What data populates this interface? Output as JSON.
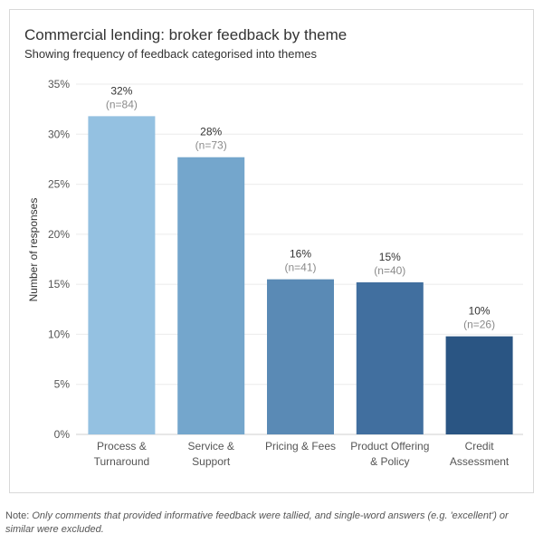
{
  "header": {
    "title": "Commercial lending: broker feedback by theme",
    "subtitle": "Showing frequency of feedback categorised into themes"
  },
  "note": {
    "lead": "Note:",
    "text": "Only comments that provided informative feedback were tallied, and single-word answers (e.g. 'excellent') or similar were excluded."
  },
  "chart_data": {
    "type": "bar",
    "title": "Commercial lending: broker feedback by theme",
    "subtitle": "Showing frequency of feedback categorised into themes",
    "xlabel": "",
    "ylabel": "Number of responses",
    "ylim": [
      0,
      35
    ],
    "yticks": [
      0,
      5,
      10,
      15,
      20,
      25,
      30,
      35
    ],
    "ytick_labels": [
      "0%",
      "5%",
      "10%",
      "15%",
      "20%",
      "25%",
      "30%",
      "35%"
    ],
    "grid": true,
    "categories": [
      [
        "Process &",
        "Turnaround"
      ],
      [
        "Service &",
        "Support"
      ],
      [
        "Pricing & Fees"
      ],
      [
        "Product Offering",
        "& Policy"
      ],
      [
        "Credit",
        "Assessment"
      ]
    ],
    "values": [
      31.8,
      27.7,
      15.5,
      15.2,
      9.8
    ],
    "value_labels": [
      "32%",
      "28%",
      "16%",
      "15%",
      "10%"
    ],
    "count_labels": [
      "(n=84)",
      "(n=73)",
      "(n=41)",
      "(n=40)",
      "(n=26)"
    ],
    "colors": [
      "#94c1e1",
      "#74a6cc",
      "#5a8ab5",
      "#416f9f",
      "#2a5583"
    ],
    "gridline_color": "#ebebeb",
    "axis_color": "#cfcfcf"
  }
}
